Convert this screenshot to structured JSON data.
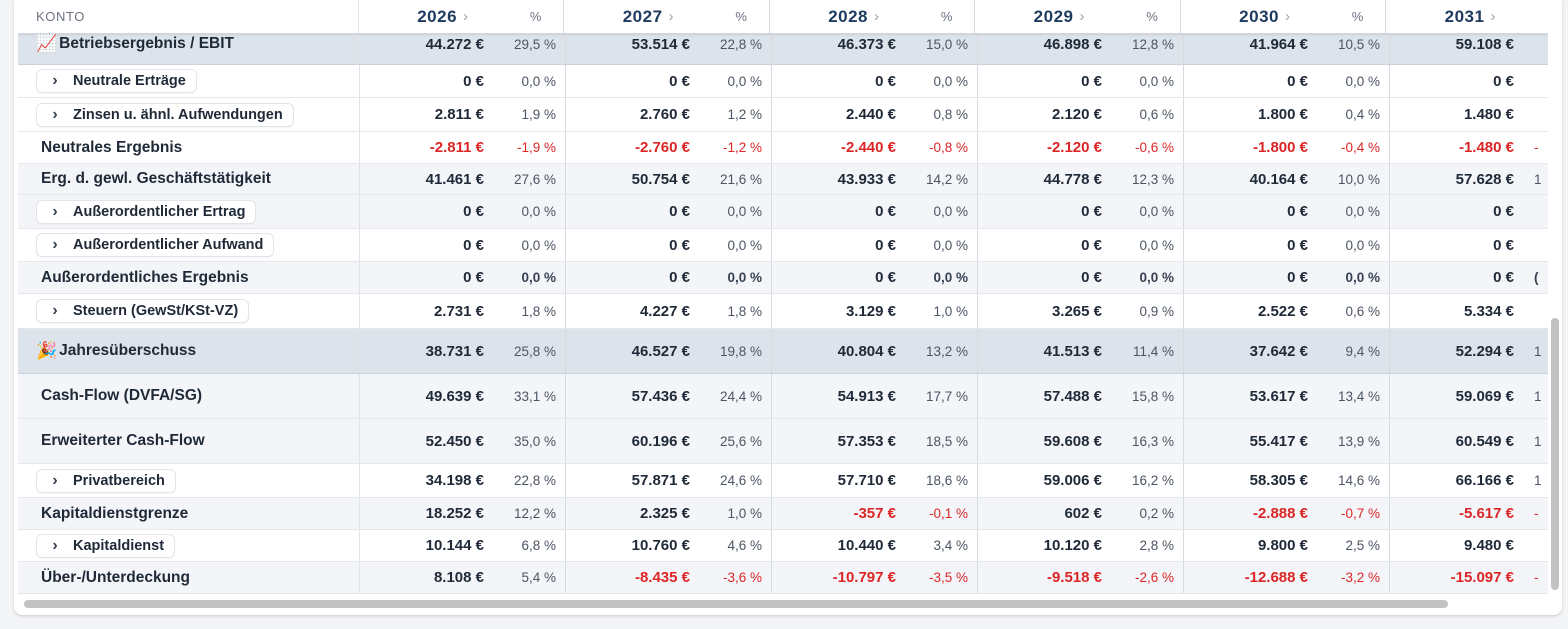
{
  "header": {
    "konto": "KONTO",
    "years": [
      "2026",
      "2027",
      "2028",
      "2029",
      "2030",
      "2031"
    ],
    "pct": "%"
  },
  "rows": [
    {
      "label": "Betriebsergebnis / EBIT",
      "icon": "chart-increasing-emoji",
      "emoji": "📈",
      "values": [
        "44.272 €",
        "53.514 €",
        "46.373 €",
        "46.898 €",
        "41.964 €",
        "59.108 €"
      ],
      "pcts": [
        "29,5 %",
        "22,8 %",
        "15,0 %",
        "12,8 %",
        "10,5 %",
        ""
      ]
    },
    {
      "label": "Neutrale Erträge",
      "values": [
        "0 €",
        "0 €",
        "0 €",
        "0 €",
        "0 €",
        "0 €"
      ],
      "pcts": [
        "0,0 %",
        "0,0 %",
        "0,0 %",
        "0,0 %",
        "0,0 %",
        ""
      ]
    },
    {
      "label": "Zinsen u. ähnl. Aufwendungen",
      "values": [
        "2.811 €",
        "2.760 €",
        "2.440 €",
        "2.120 €",
        "1.800 €",
        "1.480 €"
      ],
      "pcts": [
        "1,9 %",
        "1,2 %",
        "0,8 %",
        "0,6 %",
        "0,4 %",
        ""
      ]
    },
    {
      "label": "Neutrales Ergebnis",
      "values": [
        "-2.811 €",
        "-2.760 €",
        "-2.440 €",
        "-2.120 €",
        "-1.800 €",
        "-1.480 €"
      ],
      "pcts": [
        "-1,9 %",
        "-1,2 %",
        "-0,8 %",
        "-0,6 %",
        "-0,4 %",
        "-"
      ]
    },
    {
      "label": "Erg. d. gewl. Geschäftstätigkeit",
      "values": [
        "41.461 €",
        "50.754 €",
        "43.933 €",
        "44.778 €",
        "40.164 €",
        "57.628 €"
      ],
      "pcts": [
        "27,6 %",
        "21,6 %",
        "14,2 %",
        "12,3 %",
        "10,0 %",
        "1"
      ]
    },
    {
      "label": "Außerordentlicher Ertrag",
      "values": [
        "0 €",
        "0 €",
        "0 €",
        "0 €",
        "0 €",
        "0 €"
      ],
      "pcts": [
        "0,0 %",
        "0,0 %",
        "0,0 %",
        "0,0 %",
        "0,0 %",
        ""
      ]
    },
    {
      "label": "Außerordentlicher Aufwand",
      "values": [
        "0 €",
        "0 €",
        "0 €",
        "0 €",
        "0 €",
        "0 €"
      ],
      "pcts": [
        "0,0 %",
        "0,0 %",
        "0,0 %",
        "0,0 %",
        "0,0 %",
        ""
      ]
    },
    {
      "label": "Außerordentliches Ergebnis",
      "values": [
        "0 €",
        "0 €",
        "0 €",
        "0 €",
        "0 €",
        "0 €"
      ],
      "pcts": [
        "0,0 %",
        "0,0 %",
        "0,0 %",
        "0,0 %",
        "0,0 %",
        "("
      ]
    },
    {
      "label": "Steuern (GewSt/KSt-VZ)",
      "values": [
        "2.731 €",
        "4.227 €",
        "3.129 €",
        "3.265 €",
        "2.522 €",
        "5.334 €"
      ],
      "pcts": [
        "1,8 %",
        "1,8 %",
        "1,0 %",
        "0,9 %",
        "0,6 %",
        ""
      ]
    },
    {
      "label": "Jahresüberschuss",
      "icon": "party-popper-emoji",
      "emoji": "🎉",
      "values": [
        "38.731 €",
        "46.527 €",
        "40.804 €",
        "41.513 €",
        "37.642 €",
        "52.294 €"
      ],
      "pcts": [
        "25,8 %",
        "19,8 %",
        "13,2 %",
        "11,4 %",
        "9,4 %",
        "1"
      ]
    },
    {
      "label": "Cash-Flow (DVFA/SG)",
      "values": [
        "49.639 €",
        "57.436 €",
        "54.913 €",
        "57.488 €",
        "53.617 €",
        "59.069 €"
      ],
      "pcts": [
        "33,1 %",
        "24,4 %",
        "17,7 %",
        "15,8 %",
        "13,4 %",
        "1"
      ]
    },
    {
      "label": "Erweiterter Cash-Flow",
      "values": [
        "52.450 €",
        "60.196 €",
        "57.353 €",
        "59.608 €",
        "55.417 €",
        "60.549 €"
      ],
      "pcts": [
        "35,0 %",
        "25,6 %",
        "18,5 %",
        "16,3 %",
        "13,9 %",
        "1"
      ]
    },
    {
      "label": "Privatbereich",
      "values": [
        "34.198 €",
        "57.871 €",
        "57.710 €",
        "59.006 €",
        "58.305 €",
        "66.166 €"
      ],
      "pcts": [
        "22,8 %",
        "24,6 %",
        "18,6 %",
        "16,2 %",
        "14,6 %",
        "1"
      ]
    },
    {
      "label": "Kapitaldienstgrenze",
      "values": [
        "18.252 €",
        "2.325 €",
        "-357 €",
        "602 €",
        "-2.888 €",
        "-5.617 €"
      ],
      "pcts": [
        "12,2 %",
        "1,0 %",
        "-0,1 %",
        "0,2 %",
        "-0,7 %",
        "-"
      ]
    },
    {
      "label": "Kapitaldienst",
      "values": [
        "10.144 €",
        "10.760 €",
        "10.440 €",
        "10.120 €",
        "9.800 €",
        "9.480 €"
      ],
      "pcts": [
        "6,8 %",
        "4,6 %",
        "3,4 %",
        "2,8 %",
        "2,5 %",
        ""
      ]
    },
    {
      "label": "Über-/Unterdeckung",
      "values": [
        "8.108 €",
        "-8.435 €",
        "-10.797 €",
        "-9.518 €",
        "-12.688 €",
        "-15.097 €"
      ],
      "pcts": [
        "5,4 %",
        "-3,6 %",
        "-3,5 %",
        "-2,6 %",
        "-3,2 %",
        "-"
      ]
    }
  ],
  "colors": {
    "negative": "#dc2626",
    "highlight_row": "#dde3ea",
    "alt_row": "#f3f5f8",
    "year_header": "#1e3a5f"
  }
}
